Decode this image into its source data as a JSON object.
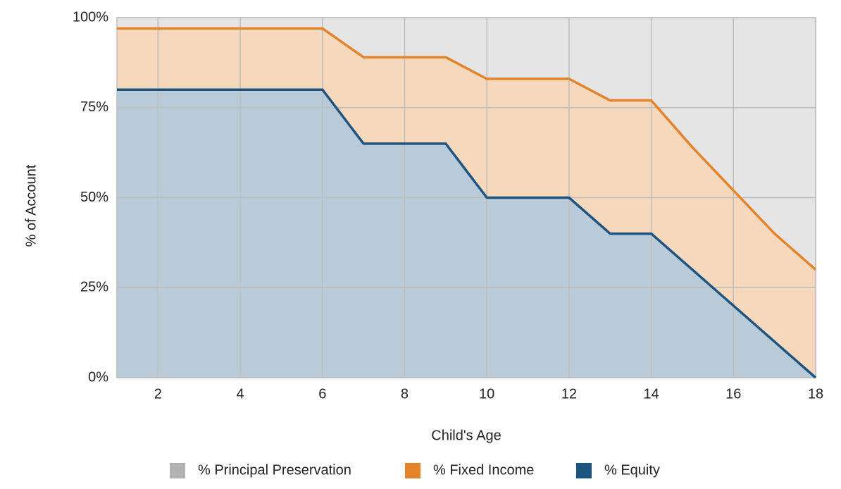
{
  "chart_data": {
    "type": "stacked-area",
    "x_label": "Child's Age",
    "y_label": "% of Account",
    "x": [
      1,
      2,
      3,
      4,
      5,
      6,
      7,
      8,
      9,
      10,
      11,
      12,
      13,
      14,
      15,
      16,
      17,
      18
    ],
    "series": [
      {
        "name": "% Principal Preservation",
        "color": "#b3b3b3",
        "fill": "#e5e5e5",
        "values": [
          3,
          3,
          3,
          3,
          3,
          3,
          11,
          11,
          11,
          17,
          17,
          17,
          23,
          23,
          36,
          48,
          60,
          70
        ]
      },
      {
        "name": "% Fixed Income",
        "color": "#e5832b",
        "fill": "#f6d8bd",
        "values": [
          17,
          17,
          17,
          17,
          17,
          17,
          24,
          24,
          24,
          33,
          33,
          33,
          37,
          37,
          34,
          32,
          30,
          30
        ]
      },
      {
        "name": "% Equity",
        "color": "#1d5480",
        "fill": "#b9cbd9",
        "values": [
          80,
          80,
          80,
          80,
          80,
          80,
          65,
          65,
          65,
          50,
          50,
          50,
          40,
          40,
          30,
          20,
          10,
          0
        ]
      }
    ],
    "xlim": [
      1,
      18
    ],
    "xticks": [
      2,
      4,
      6,
      8,
      10,
      12,
      14,
      16,
      18
    ],
    "ylim": [
      0,
      100
    ],
    "yticks": [
      {
        "value": 0,
        "label": "0%"
      },
      {
        "value": 25,
        "label": "25%"
      },
      {
        "value": 50,
        "label": "50%"
      },
      {
        "value": 75,
        "label": "75%"
      },
      {
        "value": 100,
        "label": "100%"
      }
    ],
    "grid": true,
    "legend": "bottom"
  }
}
